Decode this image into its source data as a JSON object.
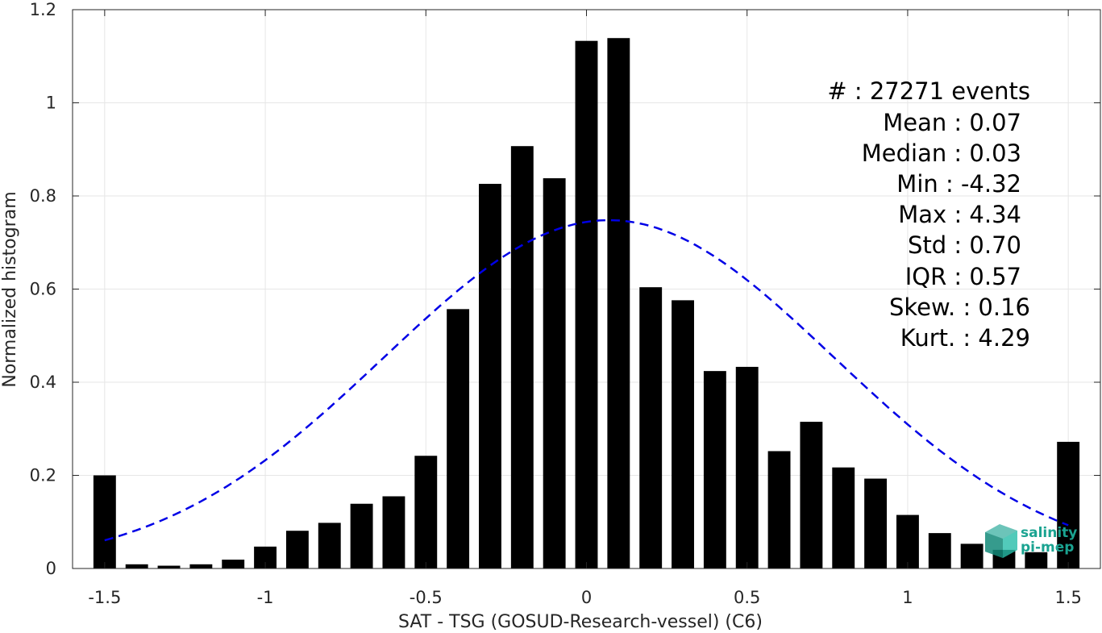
{
  "chart_data": {
    "type": "bar",
    "xlabel": "SAT - TSG (GOSUD-Research-vessel) (C6)",
    "ylabel": "Normalized histogram",
    "xlim": [
      -1.6,
      1.6
    ],
    "ylim": [
      0,
      1.2
    ],
    "xticks": [
      -1.5,
      -1,
      -0.5,
      0,
      0.5,
      1,
      1.5
    ],
    "xtick_labels": [
      "-1.5",
      "-1",
      "-0.5",
      "0",
      "0.5",
      "1",
      "1.5"
    ],
    "yticks": [
      0,
      0.2,
      0.4,
      0.6,
      0.8,
      1,
      1.2
    ],
    "ytick_labels": [
      "0",
      "0.2",
      "0.4",
      "0.6",
      "0.8",
      "1",
      "1.2"
    ],
    "grid": true,
    "bar_width": 0.07,
    "x": [
      -1.5,
      -1.4,
      -1.3,
      -1.2,
      -1.1,
      -1.0,
      -0.9,
      -0.8,
      -0.7,
      -0.6,
      -0.5,
      -0.4,
      -0.3,
      -0.2,
      -0.1,
      0.0,
      0.1,
      0.2,
      0.3,
      0.4,
      0.5,
      0.6,
      0.7,
      0.8,
      0.9,
      1.0,
      1.1,
      1.2,
      1.3,
      1.4,
      1.5
    ],
    "values": [
      0.2,
      0.009,
      0.006,
      0.009,
      0.019,
      0.047,
      0.081,
      0.098,
      0.139,
      0.155,
      0.242,
      0.557,
      0.826,
      0.907,
      0.838,
      1.133,
      1.139,
      0.604,
      0.576,
      0.424,
      0.433,
      0.252,
      0.315,
      0.217,
      0.193,
      0.115,
      0.076,
      0.053,
      0.04,
      0.035,
      0.272
    ],
    "bar_color": "#000000",
    "fit_curve": {
      "style": "dashed",
      "color": "#0000e6",
      "mean": 0.07,
      "std": 0.7,
      "peak": 0.748,
      "x_range": [
        -1.5,
        1.5
      ]
    },
    "annotations": [
      "#  : 27271 events",
      "Mean : 0.07",
      "Median : 0.03",
      "Min : -4.32",
      "Max : 4.34",
      "Std : 0.70",
      "IQR : 0.57",
      "Skew. : 0.16",
      "Kurt. : 4.29"
    ]
  },
  "logo": {
    "line1": "salinity",
    "line2": "pi-mep",
    "color": "#1aa391"
  }
}
